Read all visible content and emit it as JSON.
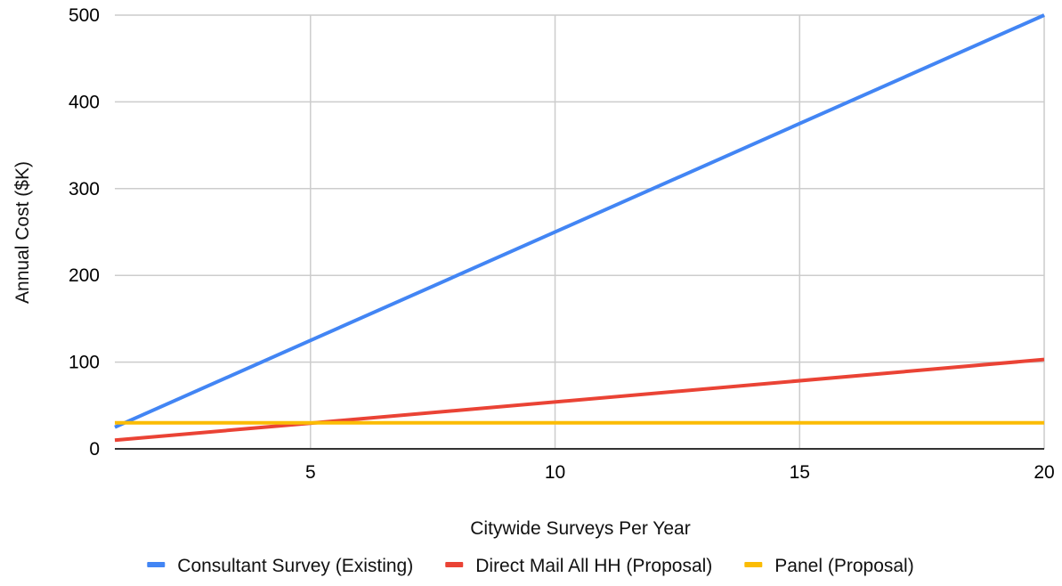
{
  "chart_data": {
    "type": "line",
    "title": "",
    "xlabel": "Citywide Surveys Per Year",
    "ylabel": "Annual Cost ($K)",
    "xlim": [
      1,
      20
    ],
    "ylim": [
      0,
      500
    ],
    "x_ticks": [
      5,
      10,
      15,
      20
    ],
    "y_ticks": [
      0,
      100,
      200,
      300,
      400,
      500
    ],
    "x_tick_labels": [
      "5",
      "10",
      "15",
      "20"
    ],
    "y_tick_labels": [
      "0",
      "100",
      "200",
      "300",
      "400",
      "500"
    ],
    "grid": true,
    "legend_position": "bottom",
    "series": [
      {
        "name": "Consultant Survey (Existing)",
        "color": "#4285F4",
        "x": [
          1,
          20
        ],
        "y": [
          25,
          500
        ]
      },
      {
        "name": "Direct Mail All HH (Proposal)",
        "color": "#EA4335",
        "x": [
          1,
          20
        ],
        "y": [
          10,
          103
        ]
      },
      {
        "name": "Panel (Proposal)",
        "color": "#FBBC04",
        "x": [
          1,
          20
        ],
        "y": [
          30,
          30
        ]
      }
    ]
  }
}
